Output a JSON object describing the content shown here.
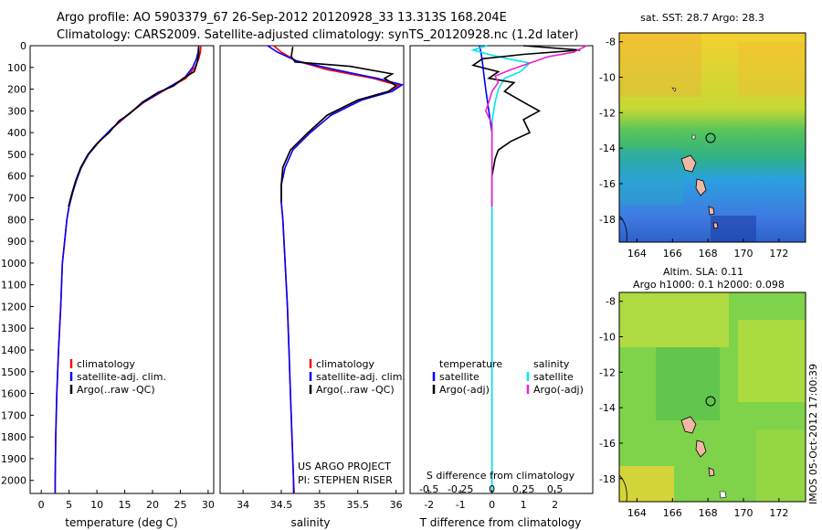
{
  "figure": {
    "title_line1": "Argo profile: AO 5903379_67 26-Sep-2012 20120928_33 13.313S 168.204E",
    "title_line2": "Climatology: CARS2009. Satellite-adjusted climatology: synTS_20120928.nc (1.2d later)",
    "footer_vertical": "IMOS 05-Oct-2012 17:00:39",
    "project_line1": "US ARGO PROJECT",
    "project_line2": "PI: STEPHEN RISER"
  },
  "colors": {
    "climatology": "#ff0000",
    "satellite": "#0000ff",
    "argo": "#000000",
    "salinity_satellite": "#00e5ee",
    "salinity_argo": "#ee22cc"
  },
  "chart_data": [
    {
      "type": "line",
      "id": "temperature",
      "xlabel": "temperature (deg C)",
      "xlim": [
        -2,
        31
      ],
      "ylim": [
        2060,
        0
      ],
      "xticks": [
        0,
        5,
        10,
        15,
        20,
        25,
        30
      ],
      "yticks": [
        0,
        100,
        200,
        300,
        400,
        500,
        600,
        700,
        800,
        900,
        1000,
        1100,
        1200,
        1300,
        1400,
        1500,
        1600,
        1700,
        1800,
        1900,
        2000
      ],
      "legend": [
        "climatology",
        "satellite-adj. clim.",
        "Argo(..raw -QC)"
      ],
      "legend_position": "lower-left",
      "series": [
        {
          "name": "climatology",
          "color": "#ff0000",
          "points": [
            [
              28.7,
              0
            ],
            [
              28.6,
              30
            ],
            [
              28.3,
              60
            ],
            [
              27.6,
              100
            ],
            [
              26.0,
              150
            ],
            [
              22.5,
              200
            ],
            [
              18.5,
              260
            ],
            [
              15.5,
              320
            ],
            [
              12.8,
              380
            ],
            [
              10.5,
              440
            ],
            [
              8.5,
              500
            ],
            [
              7.2,
              560
            ],
            [
              6.3,
              620
            ],
            [
              5.6,
              680
            ],
            [
              5.0,
              740
            ],
            [
              4.6,
              800
            ],
            [
              4.2,
              900
            ],
            [
              3.8,
              1000
            ],
            [
              3.5,
              1200
            ],
            [
              3.1,
              1400
            ],
            [
              2.8,
              1600
            ],
            [
              2.6,
              1800
            ],
            [
              2.5,
              2000
            ],
            [
              2.5,
              2060
            ]
          ]
        },
        {
          "name": "satellite-adj. clim.",
          "color": "#0000ff",
          "points": [
            [
              28.3,
              0
            ],
            [
              28.2,
              30
            ],
            [
              27.9,
              60
            ],
            [
              27.2,
              100
            ],
            [
              25.7,
              150
            ],
            [
              22.3,
              200
            ],
            [
              18.4,
              260
            ],
            [
              15.4,
              320
            ],
            [
              12.7,
              380
            ],
            [
              10.4,
              440
            ],
            [
              8.5,
              500
            ],
            [
              7.2,
              560
            ],
            [
              6.3,
              620
            ],
            [
              5.6,
              680
            ],
            [
              5.0,
              740
            ],
            [
              4.6,
              800
            ],
            [
              4.2,
              900
            ],
            [
              3.8,
              1000
            ],
            [
              3.5,
              1200
            ],
            [
              3.1,
              1400
            ],
            [
              2.8,
              1600
            ],
            [
              2.6,
              1800
            ],
            [
              2.5,
              2000
            ],
            [
              2.5,
              2060
            ]
          ]
        },
        {
          "name": "Argo(..raw -QC)",
          "color": "#000000",
          "points": [
            [
              28.3,
              5
            ],
            [
              28.3,
              40
            ],
            [
              28.0,
              80
            ],
            [
              27.5,
              120
            ],
            [
              25.5,
              150
            ],
            [
              23.8,
              185
            ],
            [
              21.0,
              215
            ],
            [
              18.2,
              260
            ],
            [
              15.8,
              315
            ],
            [
              14.0,
              345
            ],
            [
              12.2,
              400
            ],
            [
              10.0,
              450
            ],
            [
              8.4,
              500
            ],
            [
              7.1,
              560
            ],
            [
              6.2,
              620
            ],
            [
              5.5,
              680
            ],
            [
              4.9,
              740
            ]
          ]
        }
      ]
    },
    {
      "type": "line",
      "id": "salinity",
      "xlabel": "salinity",
      "xlim": [
        33.7,
        36.1
      ],
      "ylim": [
        2060,
        0
      ],
      "xticks": [
        34,
        34.5,
        35,
        35.5,
        36
      ],
      "legend": [
        "climatology",
        "satellite-adj. clim.",
        "Argo(..raw -QC)"
      ],
      "legend_position": "lower-right",
      "series": [
        {
          "name": "climatology",
          "color": "#ff0000",
          "points": [
            [
              34.4,
              0
            ],
            [
              34.5,
              30
            ],
            [
              34.7,
              70
            ],
            [
              35.1,
              110
            ],
            [
              35.7,
              150
            ],
            [
              36.05,
              185
            ],
            [
              35.9,
              210
            ],
            [
              35.5,
              250
            ],
            [
              35.1,
              320
            ],
            [
              34.85,
              400
            ],
            [
              34.62,
              480
            ],
            [
              34.52,
              560
            ],
            [
              34.5,
              640
            ],
            [
              34.5,
              720
            ],
            [
              34.52,
              800
            ],
            [
              34.55,
              1000
            ],
            [
              34.58,
              1200
            ],
            [
              34.6,
              1400
            ],
            [
              34.62,
              1600
            ],
            [
              34.64,
              1800
            ],
            [
              34.66,
              2000
            ],
            [
              34.67,
              2060
            ]
          ]
        },
        {
          "name": "satellite-adj. clim.",
          "color": "#0000ff",
          "points": [
            [
              34.32,
              0
            ],
            [
              34.45,
              30
            ],
            [
              34.7,
              70
            ],
            [
              35.2,
              110
            ],
            [
              35.75,
              150
            ],
            [
              36.08,
              180
            ],
            [
              35.95,
              210
            ],
            [
              35.55,
              250
            ],
            [
              35.15,
              320
            ],
            [
              34.88,
              400
            ],
            [
              34.65,
              480
            ],
            [
              34.55,
              560
            ],
            [
              34.5,
              640
            ],
            [
              34.5,
              720
            ],
            [
              34.52,
              800
            ],
            [
              34.55,
              1000
            ],
            [
              34.58,
              1200
            ],
            [
              34.6,
              1400
            ],
            [
              34.62,
              1600
            ],
            [
              34.64,
              1800
            ],
            [
              34.66,
              2000
            ],
            [
              34.66,
              2060
            ]
          ]
        },
        {
          "name": "Argo(..raw -QC)",
          "color": "#000000",
          "points": [
            [
              34.65,
              5
            ],
            [
              34.63,
              50
            ],
            [
              34.68,
              75
            ],
            [
              35.4,
              95
            ],
            [
              35.95,
              130
            ],
            [
              35.85,
              150
            ],
            [
              36.0,
              185
            ],
            [
              35.9,
              210
            ],
            [
              35.5,
              250
            ],
            [
              35.1,
              320
            ],
            [
              34.85,
              400
            ],
            [
              34.62,
              480
            ],
            [
              34.52,
              560
            ],
            [
              34.5,
              640
            ],
            [
              34.5,
              720
            ]
          ]
        }
      ]
    },
    {
      "type": "line",
      "id": "difference",
      "xlabel": "T difference from climatology",
      "xlabel_top": "S difference from climatology",
      "xlim": [
        -2.6,
        3.2
      ],
      "ylim": [
        2060,
        0
      ],
      "xticks": [
        -2,
        -1,
        0,
        1,
        2
      ],
      "xticks_top": [
        -0.5,
        -0.25,
        0,
        0.25,
        0.5
      ],
      "legend_temperature": [
        "temperature",
        "satellite",
        "Argo(-adj)"
      ],
      "legend_salinity": [
        "salinity",
        "satellite",
        "Argo(-adj)"
      ],
      "series": [
        {
          "name": "temperature satellite",
          "color": "#0000ff",
          "points": [
            [
              -0.4,
              0
            ],
            [
              -0.35,
              30
            ],
            [
              -0.3,
              80
            ],
            [
              -0.25,
              140
            ],
            [
              -0.2,
              200
            ],
            [
              -0.1,
              300
            ],
            [
              0,
              400
            ],
            [
              0,
              500
            ],
            [
              0,
              700
            ],
            [
              0,
              1000
            ],
            [
              0,
              2060
            ]
          ]
        },
        {
          "name": "salinity satellite",
          "color": "#00e5ee",
          "points": [
            [
              -0.15,
              0
            ],
            [
              -0.6,
              20
            ],
            [
              -0.1,
              40
            ],
            [
              0.5,
              60
            ],
            [
              1.2,
              80
            ],
            [
              0.9,
              120
            ],
            [
              0.4,
              150
            ],
            [
              0.2,
              200
            ],
            [
              0.1,
              260
            ],
            [
              0,
              350
            ],
            [
              0,
              500
            ],
            [
              0,
              700
            ],
            [
              0,
              1000
            ],
            [
              0,
              2060
            ]
          ]
        },
        {
          "name": "temperature Argo(-adj)",
          "color": "#000000",
          "points": [
            [
              1.0,
              0
            ],
            [
              2.8,
              20
            ],
            [
              1.0,
              40
            ],
            [
              -0.3,
              60
            ],
            [
              -0.6,
              90
            ],
            [
              0.2,
              120
            ],
            [
              -0.1,
              150
            ],
            [
              0.7,
              170
            ],
            [
              0.4,
              210
            ],
            [
              1.0,
              260
            ],
            [
              1.5,
              300
            ],
            [
              1.0,
              340
            ],
            [
              1.2,
              400
            ],
            [
              0.6,
              440
            ],
            [
              0.2,
              480
            ],
            [
              0.1,
              520
            ],
            [
              0,
              600
            ],
            [
              0,
              740
            ]
          ]
        },
        {
          "name": "salinity Argo(-adj)",
          "color": "#ee22cc",
          "points": [
            [
              3.0,
              0
            ],
            [
              2.6,
              30
            ],
            [
              1.8,
              50
            ],
            [
              1.2,
              80
            ],
            [
              0.6,
              110
            ],
            [
              0.1,
              140
            ],
            [
              0.2,
              170
            ],
            [
              0,
              210
            ],
            [
              -0.1,
              260
            ],
            [
              -0.2,
              300
            ],
            [
              0,
              360
            ],
            [
              0,
              500
            ],
            [
              0,
              740
            ]
          ]
        }
      ]
    },
    {
      "type": "heatmap",
      "id": "sst_map",
      "title": "sat. SST: 28.7  Argo: 28.3",
      "xlim": [
        163,
        173.5
      ],
      "ylim": [
        -19.3,
        -7.5
      ],
      "xticks": [
        164,
        166,
        168,
        170,
        172
      ],
      "yticks": [
        -8,
        -10,
        -12,
        -14,
        -16,
        -18
      ],
      "profile_location": [
        168.2,
        -13.3
      ]
    },
    {
      "type": "heatmap",
      "id": "sla_map",
      "title": "Altim. SLA: 0.11",
      "subtitle": "Argo h1000: 0.1 h2000: 0.098",
      "xlim": [
        163,
        173.5
      ],
      "ylim": [
        -19.3,
        -7.5
      ],
      "xticks": [
        164,
        166,
        168,
        170,
        172
      ],
      "yticks": [
        -8,
        -10,
        -12,
        -14,
        -16,
        -18
      ],
      "profile_location": [
        168.2,
        -13.3
      ]
    }
  ]
}
